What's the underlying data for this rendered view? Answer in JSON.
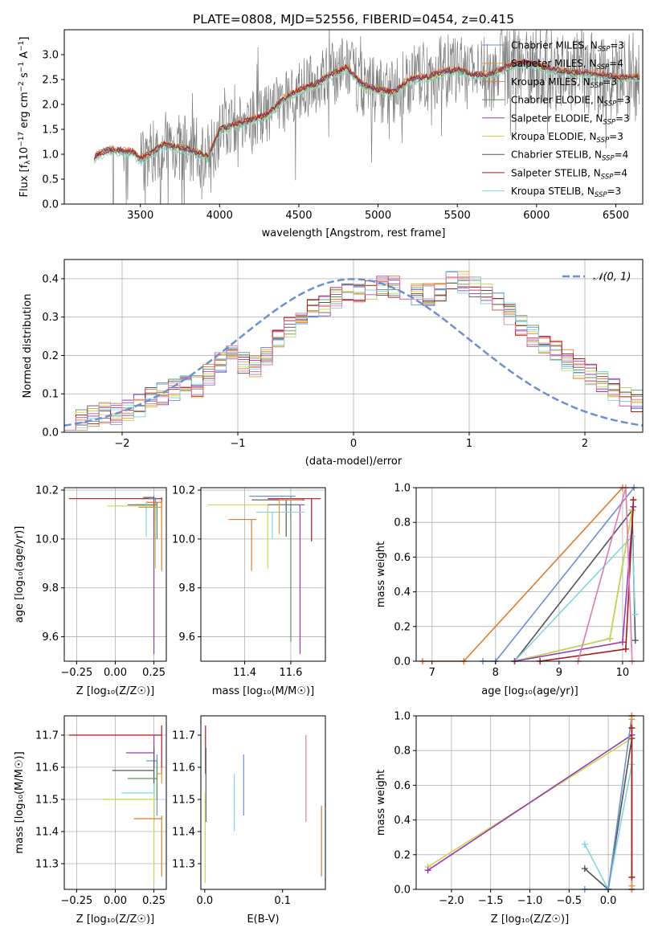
{
  "colors": {
    "Chabrier MILES": "#6b8fd6",
    "Salpeter MILES": "#e8963a",
    "Kroupa MILES": "#e07a2a",
    "Chabrier ELODIE": "#5a9460",
    "Salpeter ELODIE": "#9a3ab8",
    "Kroupa ELODIE": "#c8d84a",
    "Chabrier STELIB": "#555555",
    "Salpeter STELIB": "#b01818",
    "Kroupa STELIB": "#7fd6e0",
    "normal": "#6b8fd6",
    "pink": "#e07ab0",
    "grey_data": "#808080"
  },
  "chart_data": [
    {
      "id": "spectrum",
      "type": "line",
      "title": "PLATE=0808, MJD=52556, FIBERID=0454, z=0.415",
      "xlabel": "wavelength [Angstrom, rest frame]",
      "ylabel_prefix": "Flux [f",
      "ylabel_mid": "10",
      "ylabel_exp": "−17",
      "ylabel_suffix": " erg cm",
      "ylabel_exp2": "−2",
      "ylabel_s": " s",
      "ylabel_exp3": "−1",
      "ylabel_A": " A",
      "ylabel_exp4": "−1",
      "ylabel_end": "]",
      "xlim": [
        3020,
        6670
      ],
      "ylim": [
        0,
        3.5
      ],
      "xticks": [
        3500,
        4000,
        4500,
        5000,
        5500,
        6000,
        6500
      ],
      "yticks": [
        0.0,
        0.5,
        1.0,
        1.5,
        2.0,
        2.5,
        3.0
      ],
      "continuum": [
        [
          3210,
          0.95
        ],
        [
          3300,
          1.1
        ],
        [
          3450,
          1.05
        ],
        [
          3500,
          0.9
        ],
        [
          3650,
          1.2
        ],
        [
          3800,
          1.1
        ],
        [
          3930,
          0.95
        ],
        [
          4000,
          1.5
        ],
        [
          4100,
          1.6
        ],
        [
          4300,
          1.8
        ],
        [
          4400,
          2.1
        ],
        [
          4500,
          2.3
        ],
        [
          4600,
          2.4
        ],
        [
          4700,
          2.6
        ],
        [
          4800,
          2.75
        ],
        [
          4900,
          2.4
        ],
        [
          5000,
          2.3
        ],
        [
          5100,
          2.25
        ],
        [
          5200,
          2.5
        ],
        [
          5300,
          2.55
        ],
        [
          5400,
          2.65
        ],
        [
          5500,
          2.7
        ],
        [
          5600,
          2.6
        ],
        [
          5700,
          2.6
        ],
        [
          5800,
          2.75
        ],
        [
          5900,
          2.85
        ],
        [
          6000,
          2.8
        ],
        [
          6100,
          2.7
        ],
        [
          6200,
          2.65
        ],
        [
          6300,
          2.65
        ],
        [
          6400,
          2.6
        ],
        [
          6500,
          2.55
        ]
      ],
      "legend": [
        {
          "model": "Chabrier MILES",
          "n": "3"
        },
        {
          "model": "Salpeter MILES",
          "n": "4"
        },
        {
          "model": "Kroupa MILES",
          "n": "3"
        },
        {
          "model": "Chabrier ELODIE",
          "n": "3"
        },
        {
          "model": "Salpeter ELODIE",
          "n": "3"
        },
        {
          "model": "Kroupa ELODIE",
          "n": "3"
        },
        {
          "model": "Chabrier STELIB",
          "n": "4"
        },
        {
          "model": "Salpeter STELIB",
          "n": "4"
        },
        {
          "model": "Kroupa STELIB",
          "n": "3"
        }
      ],
      "legend_n_label": "N",
      "legend_n_sub": "SSP",
      "legend_location": "top-right",
      "grid": false
    },
    {
      "id": "residuals",
      "type": "histogram",
      "xlabel": "(data-model)/error",
      "ylabel": "Normed distribution",
      "xlim": [
        -2.5,
        2.5
      ],
      "ylim": [
        0,
        0.45
      ],
      "xticks": [
        -2,
        -1,
        0,
        1,
        2
      ],
      "yticks": [
        0.0,
        0.1,
        0.2,
        0.3,
        0.4
      ],
      "bin_width": 0.1,
      "envelope": [
        0.03,
        0.03,
        0.04,
        0.05,
        0.05,
        0.06,
        0.07,
        0.09,
        0.1,
        0.11,
        0.12,
        0.12,
        0.15,
        0.18,
        0.2,
        0.18,
        0.17,
        0.2,
        0.24,
        0.27,
        0.3,
        0.32,
        0.33,
        0.35,
        0.36,
        0.36,
        0.37,
        0.38,
        0.38,
        0.37,
        0.36,
        0.36,
        0.37,
        0.39,
        0.39,
        0.38,
        0.36,
        0.34,
        0.31,
        0.28,
        0.25,
        0.23,
        0.21,
        0.19,
        0.17,
        0.15,
        0.13,
        0.11,
        0.09,
        0.08
      ],
      "legend": "𝒩(0, 1)",
      "legend_location": "top-right",
      "grid": true
    },
    {
      "id": "age_vs_Z",
      "type": "errorbar",
      "xlabel": "Z [log₁₀(Z/Z☉)]",
      "ylabel": "age  [log₁₀(age/yr)]",
      "xlim": [
        -0.33,
        0.33
      ],
      "ylim": [
        9.5,
        10.21
      ],
      "xticks": [
        -0.25,
        0.0,
        0.25
      ],
      "yticks": [
        9.6,
        9.8,
        10.0,
        10.2
      ],
      "points": [
        {
          "model": "Salpeter STELIB",
          "x": 0.3,
          "y": 10.165,
          "xlo": -0.3,
          "yhi": 10.17,
          "ylo": 10.1
        },
        {
          "model": "Chabrier MILES",
          "x": 0.26,
          "y": 10.165,
          "xlo": 0.22,
          "yhi": 10.17,
          "ylo": 10.08
        },
        {
          "model": "Chabrier STELIB",
          "x": 0.25,
          "y": 10.17,
          "xlo": 0.18,
          "yhi": 10.175,
          "ylo": 10.0
        },
        {
          "model": "Kroupa MILES",
          "x": 0.3,
          "y": 10.15,
          "xlo": 0.2,
          "yhi": 10.16,
          "ylo": 9.87
        },
        {
          "model": "Kroupa ELODIE",
          "x": 0.26,
          "y": 10.135,
          "xlo": -0.05,
          "yhi": 10.145,
          "ylo": 9.88
        },
        {
          "model": "Salpeter ELODIE",
          "x": 0.25,
          "y": 10.14,
          "xlo": 0.08,
          "yhi": 10.15,
          "ylo": 9.53
        },
        {
          "model": "Chabrier ELODIE",
          "x": 0.27,
          "y": 10.14,
          "xlo": 0.12,
          "yhi": 10.15,
          "ylo": 10.0
        },
        {
          "model": "Kroupa STELIB",
          "x": 0.2,
          "y": 10.11,
          "xlo": 0.2,
          "yhi": 10.15,
          "ylo": 10.01
        },
        {
          "model": "Salpeter MILES",
          "x": 0.3,
          "y": 10.13,
          "xlo": 0.15,
          "yhi": 10.15,
          "ylo": 10.05
        }
      ],
      "grid": true
    },
    {
      "id": "age_vs_mass",
      "type": "errorbar",
      "xlabel": "mass [log₁₀(M/M☉)]",
      "ylabel": "",
      "xlim": [
        11.21,
        11.75
      ],
      "ylim": [
        9.5,
        10.21
      ],
      "xticks": [
        11.4,
        11.6
      ],
      "yticks": [
        9.6,
        9.8,
        10.0,
        10.2
      ],
      "points": [
        {
          "model": "Salpeter STELIB",
          "x": 11.69,
          "y": 10.165,
          "xlo": 11.5,
          "xhi": 11.73,
          "ylo": 9.99
        },
        {
          "model": "Chabrier MILES",
          "x": 11.6,
          "y": 10.175,
          "xlo": 11.42,
          "xhi": 11.62,
          "ylo": 10.09
        },
        {
          "model": "Chabrier STELIB",
          "x": 11.58,
          "y": 10.16,
          "xlo": 11.43,
          "xhi": 11.66,
          "ylo": 10.01
        },
        {
          "model": "Kroupa MILES",
          "x": 11.43,
          "y": 10.08,
          "xlo": 11.33,
          "xhi": 11.45,
          "ylo": 9.87
        },
        {
          "model": "Kroupa ELODIE",
          "x": 11.5,
          "y": 10.14,
          "xlo": 11.24,
          "xhi": 11.52,
          "ylo": 9.88
        },
        {
          "model": "Salpeter ELODIE",
          "x": 11.64,
          "y": 10.14,
          "xlo": 11.5,
          "xhi": 11.66,
          "ylo": 9.53
        },
        {
          "model": "Chabrier ELODIE",
          "x": 11.6,
          "y": 10.14,
          "xlo": 11.52,
          "xhi": 11.63,
          "ylo": 9.58
        },
        {
          "model": "Kroupa STELIB",
          "x": 11.52,
          "y": 10.11,
          "xlo": 11.45,
          "xhi": 11.66,
          "ylo": 10.0
        },
        {
          "model": "Salpeter MILES",
          "x": 11.55,
          "y": 10.16,
          "xlo": 11.55,
          "xhi": 11.65,
          "ylo": 10.02
        }
      ],
      "grid": true
    },
    {
      "id": "weight_vs_age",
      "type": "line",
      "xlabel": "age  [log₁₀(age/yr)]",
      "ylabel": "mass weight",
      "xlim": [
        6.75,
        10.33
      ],
      "ylim": [
        0,
        1.0
      ],
      "xticks": [
        7,
        8,
        9,
        10
      ],
      "yticks": [
        0.0,
        0.2,
        0.4,
        0.6,
        0.8,
        1.0
      ],
      "series": [
        {
          "model": "Kroupa MILES",
          "x": [
            6.85,
            7.5,
            10.0
          ],
          "y": [
            0.0,
            0.0,
            1.0
          ]
        },
        {
          "model": "Chabrier MILES",
          "x": [
            7.8,
            8.0,
            10.18
          ],
          "y": [
            0.0,
            0.0,
            1.0
          ]
        },
        {
          "model": "Chabrier STELIB",
          "x": [
            8.3,
            10.15,
            10.2
          ],
          "y": [
            0.0,
            0.87,
            0.12
          ]
        },
        {
          "model": "Kroupa STELIB",
          "x": [
            8.3,
            10.15,
            10.2
          ],
          "y": [
            0.0,
            0.72,
            0.27
          ]
        },
        {
          "model": "Chabrier ELODIE",
          "x": [
            8.3,
            9.8,
            10.15
          ],
          "y": [
            0.0,
            0.13,
            0.87
          ]
        },
        {
          "model": "Kroupa ELODIE",
          "x": [
            8.3,
            9.8,
            10.15
          ],
          "y": [
            0.0,
            0.13,
            0.87
          ]
        },
        {
          "model": "Salpeter ELODIE",
          "x": [
            8.3,
            10.0,
            10.17
          ],
          "y": [
            0.0,
            0.11,
            0.89
          ]
        },
        {
          "model": "Salpeter STELIB",
          "x": [
            8.7,
            10.05,
            10.17
          ],
          "y": [
            0.0,
            0.07,
            0.93
          ]
        },
        {
          "model": "pink",
          "x": [
            9.3,
            10.05,
            10.15
          ],
          "y": [
            0.0,
            1.0,
            0.0
          ]
        }
      ],
      "grid": true
    },
    {
      "id": "mass_vs_Z",
      "type": "errorbar",
      "xlabel": "Z [log₁₀(Z/Z☉)]",
      "ylabel": "mass [log₁₀(M/M☉)]",
      "xlim": [
        -0.33,
        0.33
      ],
      "ylim": [
        11.22,
        11.76
      ],
      "xticks": [
        -0.25,
        0.0,
        0.25
      ],
      "yticks": [
        11.3,
        11.4,
        11.5,
        11.6,
        11.7
      ],
      "points": [
        {
          "model": "Salpeter STELIB",
          "x": 0.3,
          "y": 11.7,
          "xlo": -0.3,
          "ylo": 11.58,
          "yhi": 11.73
        },
        {
          "model": "Salpeter ELODIE",
          "x": 0.25,
          "y": 11.645,
          "xlo": 0.07,
          "ylo": 11.6,
          "yhi": 11.7
        },
        {
          "model": "Chabrier MILES",
          "x": 0.27,
          "y": 11.62,
          "xlo": 0.2,
          "ylo": 11.45,
          "yhi": 11.64
        },
        {
          "model": "Chabrier STELIB",
          "x": 0.25,
          "y": 11.59,
          "xlo": -0.02,
          "ylo": 11.43,
          "yhi": 11.66
        },
        {
          "model": "Chabrier ELODIE",
          "x": 0.27,
          "y": 11.565,
          "xlo": 0.08,
          "ylo": 11.5,
          "yhi": 11.62
        },
        {
          "model": "Kroupa STELIB",
          "x": 0.25,
          "y": 11.52,
          "xlo": 0.04,
          "ylo": 11.46,
          "yhi": 11.55
        },
        {
          "model": "Kroupa ELODIE",
          "x": 0.25,
          "y": 11.5,
          "xlo": -0.08,
          "ylo": 11.24,
          "yhi": 11.52
        },
        {
          "model": "Kroupa MILES",
          "x": 0.3,
          "y": 11.44,
          "xlo": 0.12,
          "ylo": 11.26,
          "yhi": 11.45
        },
        {
          "model": "Salpeter MILES",
          "x": 0.3,
          "y": 11.58,
          "xlo": 0.27,
          "ylo": 11.55,
          "yhi": 11.6
        }
      ],
      "grid": true
    },
    {
      "id": "mass_vs_EBV",
      "type": "errorbar",
      "xlabel": "E(B-V)",
      "ylabel": "",
      "xlim": [
        -0.005,
        0.155
      ],
      "ylim": [
        11.22,
        11.76
      ],
      "xticks": [
        0.0,
        0.1
      ],
      "yticks": [
        11.3,
        11.4,
        11.5,
        11.6,
        11.7
      ],
      "points": [
        {
          "model": "Salpeter STELIB",
          "x": 0.001,
          "ylo": 11.58,
          "yhi": 11.73
        },
        {
          "model": "Chabrier STELIB",
          "x": 0.0015,
          "ylo": 11.43,
          "yhi": 11.66
        },
        {
          "model": "Kroupa ELODIE",
          "x": 0.0005,
          "ylo": 11.24,
          "yhi": 11.52
        },
        {
          "model": "Chabrier MILES",
          "x": 0.05,
          "ylo": 11.45,
          "yhi": 11.64
        },
        {
          "model": "Kroupa STELIB",
          "x": 0.038,
          "ylo": 11.4,
          "yhi": 11.58
        },
        {
          "model": "pink",
          "x": 0.13,
          "ylo": 11.43,
          "yhi": 11.7
        },
        {
          "model": "Kroupa MILES",
          "x": 0.15,
          "ylo": 11.26,
          "yhi": 11.48
        }
      ],
      "grid": false
    },
    {
      "id": "weight_vs_Z",
      "type": "line",
      "xlabel": "Z [log₁₀(Z/Z☉)]",
      "ylabel": "mass weight",
      "xlim": [
        -2.45,
        0.45
      ],
      "ylim": [
        0,
        1.0
      ],
      "xticks": [
        -2.0,
        -1.5,
        -1.0,
        -0.5,
        0.0
      ],
      "yticks": [
        0.0,
        0.2,
        0.4,
        0.6,
        0.8,
        1.0
      ],
      "series": [
        {
          "model": "Kroupa ELODIE",
          "x": [
            -2.3,
            0.3,
            0.3
          ],
          "y": [
            0.13,
            0.87,
            0.0
          ]
        },
        {
          "model": "Salpeter ELODIE",
          "x": [
            -2.3,
            0.3,
            0.3
          ],
          "y": [
            0.11,
            0.89,
            0.0
          ]
        },
        {
          "model": "Chabrier STELIB",
          "x": [
            -0.3,
            0.0,
            0.3
          ],
          "y": [
            0.12,
            0.0,
            0.87
          ]
        },
        {
          "model": "Kroupa STELIB",
          "x": [
            -0.3,
            0.0,
            0.3
          ],
          "y": [
            0.26,
            0.0,
            0.72
          ]
        },
        {
          "model": "Chabrier MILES",
          "x": [
            -0.3,
            0.0,
            0.3
          ],
          "y": [
            0.0,
            0.0,
            1.0
          ]
        },
        {
          "model": "Kroupa MILES",
          "x": [
            0.3,
            0.3
          ],
          "y": [
            0.0,
            1.0
          ]
        },
        {
          "model": "Salpeter MILES",
          "x": [
            0.3,
            0.3
          ],
          "y": [
            0.02,
            0.98
          ]
        },
        {
          "model": "Salpeter STELIB",
          "x": [
            0.3,
            0.3
          ],
          "y": [
            0.07,
            0.93
          ]
        }
      ],
      "grid": true
    }
  ]
}
